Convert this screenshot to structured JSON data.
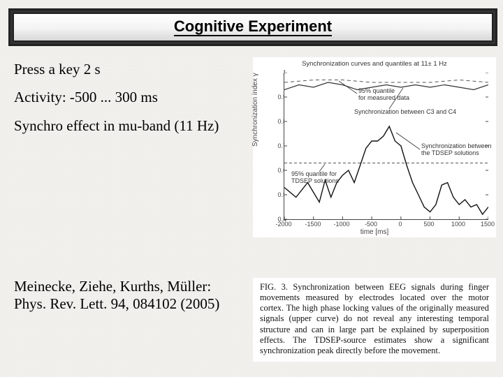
{
  "title": "Cognitive Experiment",
  "body": {
    "line1": "Press a key 2 s",
    "line2": "Activity: -500 ... 300 ms",
    "line3": "Synchro effect in mu-band (11 Hz)"
  },
  "reference": "Meinecke, Ziehe, Kurths, Müller: Phys. Rev. Lett. 94, 084102 (2005)",
  "chart": {
    "type": "line",
    "title": "Synchronization curves and quantiles at 11± 1 Hz",
    "xlabel": "time [ms]",
    "ylabel": "Synchronization index γ",
    "xlim": [
      -2000,
      1500
    ],
    "ylim": [
      0.4,
      1.0
    ],
    "xticks": [
      -2000,
      -1500,
      -1000,
      -500,
      0,
      500,
      1000,
      1500
    ],
    "yticks": [
      0.4,
      0.5,
      0.6,
      0.7,
      0.8,
      0.9,
      1.0
    ],
    "ytick_labels": [
      "0.4",
      "0.5",
      "0.6",
      "0.7",
      "0.8",
      "0.9",
      "1"
    ],
    "background_color": "#ffffff",
    "axis_color": "#444444",
    "tick_fontsize": 9,
    "label_fontsize": 10,
    "title_fontsize": 9.5,
    "series": [
      {
        "name": "measured_data",
        "color": "#333333",
        "dash": "none",
        "width": 1.2,
        "x": [
          -2000,
          -1750,
          -1500,
          -1250,
          -1000,
          -750,
          -500,
          -250,
          0,
          250,
          500,
          750,
          1000,
          1250,
          1500
        ],
        "y": [
          0.93,
          0.95,
          0.94,
          0.96,
          0.95,
          0.93,
          0.94,
          0.95,
          0.94,
          0.95,
          0.94,
          0.95,
          0.94,
          0.93,
          0.95
        ]
      },
      {
        "name": "measured_95q",
        "color": "#555555",
        "dash": "5,4",
        "width": 1,
        "x": [
          -2000,
          -1500,
          -1000,
          -500,
          0,
          500,
          1000,
          1500
        ],
        "y": [
          0.96,
          0.97,
          0.97,
          0.96,
          0.96,
          0.96,
          0.97,
          0.96
        ]
      },
      {
        "name": "tdsep",
        "color": "#111111",
        "dash": "none",
        "width": 1.4,
        "x": [
          -2000,
          -1800,
          -1600,
          -1500,
          -1400,
          -1300,
          -1200,
          -1100,
          -1000,
          -900,
          -800,
          -700,
          -600,
          -500,
          -400,
          -300,
          -200,
          -100,
          0,
          100,
          200,
          300,
          400,
          500,
          600,
          700,
          800,
          900,
          1000,
          1100,
          1200,
          1300,
          1400,
          1500
        ],
        "y": [
          0.53,
          0.49,
          0.55,
          0.51,
          0.47,
          0.56,
          0.49,
          0.55,
          0.58,
          0.6,
          0.55,
          0.62,
          0.69,
          0.72,
          0.72,
          0.74,
          0.78,
          0.72,
          0.7,
          0.62,
          0.55,
          0.5,
          0.45,
          0.43,
          0.46,
          0.54,
          0.55,
          0.49,
          0.46,
          0.48,
          0.45,
          0.46,
          0.42,
          0.45
        ]
      },
      {
        "name": "tdsep_95q",
        "color": "#555555",
        "dash": "4,3",
        "width": 1,
        "x": [
          -2000,
          -1500,
          -1000,
          -500,
          0,
          500,
          1000,
          1500
        ],
        "y": [
          0.63,
          0.63,
          0.63,
          0.63,
          0.63,
          0.63,
          0.63,
          0.63
        ]
      }
    ],
    "annotations": {
      "a1": "95% quantile\nfor measured data",
      "a2": "Synchronization between C3 and C4",
      "a3": "Synchronization between\nthe TDSEP solutions",
      "a4": "95% quantile for\nTDSEP solutions"
    }
  },
  "caption": "FIG. 3.   Synchronization between EEG signals during finger movements measured by electrodes located over the motor cortex. The high phase locking values of the originally measured signals (upper curve) do not reveal any interesting temporal structure and can in large part be explained by superposition effects. The TDSEP-source estimates show a significant synchronization peak directly before the movement."
}
